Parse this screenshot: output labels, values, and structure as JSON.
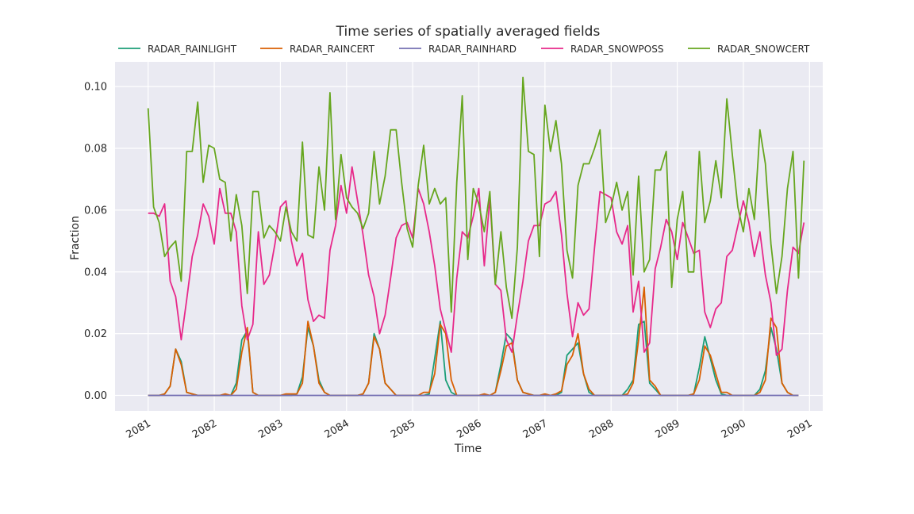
{
  "chart_data": {
    "type": "line",
    "title": "Time series of spatially averaged fields",
    "xlabel": "Time",
    "ylabel": "Fraction",
    "xlim": [
      2080.5,
      2091.2
    ],
    "ylim": [
      -0.005,
      0.108
    ],
    "x_ticks": [
      2081,
      2082,
      2083,
      2084,
      2085,
      2086,
      2087,
      2088,
      2089,
      2090,
      2091
    ],
    "y_ticks": [
      0.0,
      0.02,
      0.04,
      0.06,
      0.08,
      0.1
    ],
    "y_tick_labels": [
      "0.00",
      "0.02",
      "0.04",
      "0.06",
      "0.08",
      "0.10"
    ],
    "grid": true,
    "legend_position": "top",
    "x_start": 2081.0,
    "x_step": 0.08333,
    "background": "#eaeaf2",
    "series": [
      {
        "name": "RADAR_RAINLIGHT",
        "color": "#1b9e77",
        "values": [
          0.0,
          0.0,
          0.0,
          0.0005,
          0.003,
          0.015,
          0.011,
          0.001,
          0.0005,
          0.0,
          0.0,
          0.0,
          0.0,
          0.0,
          0.0,
          0.0,
          0.004,
          0.018,
          0.021,
          0.001,
          0.0,
          0.0,
          0.0,
          0.0,
          0.0,
          0.0,
          0.0,
          0.0005,
          0.006,
          0.022,
          0.016,
          0.005,
          0.001,
          0.0,
          0.0,
          0.0,
          0.0,
          0.0,
          0.0,
          0.0005,
          0.004,
          0.02,
          0.015,
          0.004,
          0.002,
          0.0,
          0.0,
          0.0,
          0.0,
          0.0,
          0.0,
          0.0005,
          0.012,
          0.024,
          0.005,
          0.001,
          0.0,
          0.0,
          0.0,
          0.0,
          0.0,
          0.0,
          0.0,
          0.001,
          0.01,
          0.02,
          0.018,
          0.005,
          0.001,
          0.0005,
          0.0,
          0.0,
          0.0,
          0.0,
          0.0,
          0.001,
          0.013,
          0.015,
          0.017,
          0.007,
          0.001,
          0.0,
          0.0,
          0.0,
          0.0,
          0.0,
          0.0,
          0.002,
          0.005,
          0.023,
          0.024,
          0.004,
          0.002,
          0.0,
          0.0,
          0.0,
          0.0,
          0.0,
          0.0,
          0.0005,
          0.009,
          0.019,
          0.012,
          0.005,
          0.0005,
          0.0,
          0.0,
          0.0,
          0.0,
          0.0,
          0.0,
          0.002,
          0.008,
          0.022,
          0.015,
          0.004,
          0.001,
          0.0,
          0.0
        ]
      },
      {
        "name": "RADAR_RAINCERT",
        "color": "#d95f02",
        "values": [
          0.0,
          0.0,
          0.0,
          0.0005,
          0.003,
          0.015,
          0.01,
          0.001,
          0.0005,
          0.0,
          0.0,
          0.0,
          0.0,
          0.0,
          0.0005,
          0.0,
          0.002,
          0.014,
          0.022,
          0.001,
          0.0,
          0.0,
          0.0,
          0.0,
          0.0,
          0.0005,
          0.0005,
          0.0005,
          0.004,
          0.024,
          0.016,
          0.004,
          0.001,
          0.0,
          0.0,
          0.0,
          0.0,
          0.0,
          0.0,
          0.0005,
          0.004,
          0.019,
          0.015,
          0.004,
          0.002,
          0.0,
          0.0,
          0.0,
          0.0,
          0.0,
          0.001,
          0.001,
          0.007,
          0.023,
          0.02,
          0.005,
          0.0,
          0.0,
          0.0,
          0.0,
          0.0,
          0.0005,
          0.0,
          0.001,
          0.008,
          0.016,
          0.017,
          0.005,
          0.001,
          0.0005,
          0.0,
          0.0,
          0.0005,
          0.0,
          0.0005,
          0.0015,
          0.01,
          0.013,
          0.02,
          0.007,
          0.002,
          0.0,
          0.0,
          0.0,
          0.0,
          0.0,
          0.0,
          0.0005,
          0.004,
          0.018,
          0.035,
          0.005,
          0.003,
          0.0,
          0.0,
          0.0,
          0.0,
          0.0,
          0.0,
          0.0005,
          0.005,
          0.016,
          0.013,
          0.007,
          0.001,
          0.001,
          0.0,
          0.0,
          0.0,
          0.0,
          0.0,
          0.001,
          0.005,
          0.025,
          0.022,
          0.004,
          0.001,
          0.0,
          0.0
        ]
      },
      {
        "name": "RADAR_RAINHARD",
        "color": "#7570b3",
        "values": [
          0.0,
          0.0,
          0.0,
          0.0,
          0.0,
          0.0,
          0.0,
          0.0,
          0.0,
          0.0,
          0.0,
          0.0,
          0.0,
          0.0,
          0.0,
          0.0,
          0.0,
          0.0,
          0.0,
          0.0,
          0.0,
          0.0,
          0.0,
          0.0,
          0.0,
          0.0,
          0.0,
          0.0,
          0.0,
          0.0,
          0.0,
          0.0,
          0.0,
          0.0,
          0.0,
          0.0,
          0.0,
          0.0,
          0.0,
          0.0,
          0.0,
          0.0,
          0.0,
          0.0,
          0.0,
          0.0,
          0.0,
          0.0,
          0.0,
          0.0,
          0.0,
          0.0,
          0.0,
          0.0,
          0.0,
          0.0,
          0.0,
          0.0,
          0.0,
          0.0,
          0.0,
          0.0,
          0.0,
          0.0,
          0.0,
          0.0,
          0.0,
          0.0,
          0.0,
          0.0,
          0.0,
          0.0,
          0.0,
          0.0,
          0.0,
          0.0,
          0.0,
          0.0,
          0.0,
          0.0,
          0.0,
          0.0,
          0.0,
          0.0,
          0.0,
          0.0,
          0.0,
          0.0,
          0.0,
          0.0,
          0.0,
          0.0,
          0.0,
          0.0,
          0.0,
          0.0,
          0.0,
          0.0,
          0.0,
          0.0,
          0.0,
          0.0,
          0.0,
          0.0,
          0.0,
          0.0,
          0.0,
          0.0,
          0.0,
          0.0,
          0.0,
          0.0,
          0.0,
          0.0,
          0.0,
          0.0,
          0.0,
          0.0,
          0.0
        ]
      },
      {
        "name": "RADAR_SNOWPOSS",
        "color": "#e7298a",
        "values": [
          0.059,
          0.059,
          0.058,
          0.062,
          0.037,
          0.032,
          0.018,
          0.031,
          0.045,
          0.052,
          0.062,
          0.058,
          0.049,
          0.067,
          0.059,
          0.059,
          0.053,
          0.029,
          0.018,
          0.023,
          0.053,
          0.036,
          0.039,
          0.049,
          0.061,
          0.063,
          0.05,
          0.042,
          0.046,
          0.031,
          0.024,
          0.026,
          0.025,
          0.047,
          0.055,
          0.068,
          0.059,
          0.074,
          0.063,
          0.052,
          0.039,
          0.032,
          0.02,
          0.026,
          0.038,
          0.051,
          0.055,
          0.056,
          0.051,
          0.067,
          0.062,
          0.053,
          0.042,
          0.028,
          0.021,
          0.014,
          0.038,
          0.053,
          0.051,
          0.058,
          0.067,
          0.042,
          0.064,
          0.036,
          0.034,
          0.018,
          0.014,
          0.026,
          0.037,
          0.05,
          0.055,
          0.055,
          0.062,
          0.063,
          0.066,
          0.052,
          0.033,
          0.019,
          0.03,
          0.026,
          0.028,
          0.048,
          0.066,
          0.065,
          0.064,
          0.053,
          0.049,
          0.055,
          0.027,
          0.037,
          0.014,
          0.017,
          0.041,
          0.048,
          0.057,
          0.053,
          0.044,
          0.056,
          0.051,
          0.046,
          0.047,
          0.027,
          0.022,
          0.028,
          0.03,
          0.045,
          0.047,
          0.055,
          0.063,
          0.056,
          0.045,
          0.053,
          0.039,
          0.03,
          0.013,
          0.015,
          0.034,
          0.048,
          0.046,
          0.056
        ]
      },
      {
        "name": "RADAR_SNOWCERT",
        "color": "#66a61e",
        "values": [
          0.093,
          0.061,
          0.056,
          0.045,
          0.048,
          0.05,
          0.037,
          0.079,
          0.079,
          0.095,
          0.069,
          0.081,
          0.08,
          0.07,
          0.069,
          0.05,
          0.065,
          0.055,
          0.033,
          0.066,
          0.066,
          0.051,
          0.055,
          0.053,
          0.05,
          0.061,
          0.053,
          0.05,
          0.082,
          0.052,
          0.051,
          0.074,
          0.06,
          0.098,
          0.057,
          0.078,
          0.064,
          0.061,
          0.059,
          0.054,
          0.059,
          0.079,
          0.062,
          0.071,
          0.086,
          0.086,
          0.069,
          0.054,
          0.048,
          0.068,
          0.081,
          0.062,
          0.067,
          0.062,
          0.064,
          0.027,
          0.069,
          0.097,
          0.044,
          0.067,
          0.062,
          0.053,
          0.066,
          0.036,
          0.053,
          0.035,
          0.025,
          0.048,
          0.103,
          0.079,
          0.078,
          0.045,
          0.094,
          0.079,
          0.089,
          0.075,
          0.047,
          0.038,
          0.068,
          0.075,
          0.075,
          0.08,
          0.086,
          0.056,
          0.061,
          0.069,
          0.06,
          0.066,
          0.039,
          0.071,
          0.04,
          0.044,
          0.073,
          0.073,
          0.079,
          0.035,
          0.057,
          0.066,
          0.04,
          0.04,
          0.079,
          0.056,
          0.063,
          0.076,
          0.064,
          0.096,
          0.078,
          0.061,
          0.053,
          0.067,
          0.057,
          0.086,
          0.075,
          0.049,
          0.033,
          0.045,
          0.067,
          0.079,
          0.038,
          0.076
        ]
      }
    ]
  }
}
